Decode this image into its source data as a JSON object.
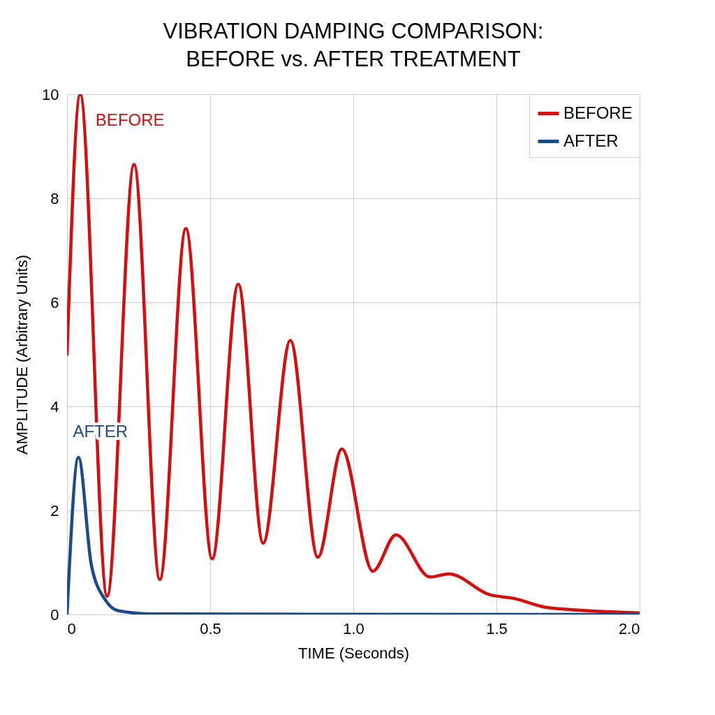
{
  "chart_data": {
    "type": "line",
    "title": "VIBRATION DAMPING COMPARISON:\nBEFORE vs. AFTER TREATMENT",
    "xlabel": "TIME (Seconds)",
    "ylabel": "AMPLITUDE (Arbitrary Units)",
    "xlim": [
      0,
      2
    ],
    "xticks": [
      0,
      0.5,
      {
        "value": 1,
        "label": "1.0"
      },
      1.5,
      {
        "value": 2,
        "label": "2.0"
      }
    ],
    "ylim": [
      0,
      10
    ],
    "yticks": [
      0,
      2,
      4,
      6,
      8,
      10
    ],
    "grid": true,
    "legend": "top right",
    "marker": "none",
    "line_style": "solid",
    "series": [
      {
        "name": "BEFORE",
        "color": "#d40f0f",
        "x": [
          0,
          0.046,
          0.14,
          0.234,
          0.324,
          0.415,
          0.507,
          0.598,
          0.685,
          0.78,
          0.876,
          0.96,
          1.068,
          1.149,
          1.268,
          1.334,
          1.476,
          1.56,
          1.68,
          2.0
        ],
        "values": [
          5.0,
          10.0,
          0.35,
          8.65,
          0.67,
          7.42,
          1.07,
          6.35,
          1.37,
          5.27,
          1.1,
          3.18,
          0.83,
          1.53,
          0.72,
          0.78,
          0.38,
          0.31,
          0.13,
          0.03
        ]
      },
      {
        "name": "AFTER",
        "color": "#1a4a8a",
        "x": [
          0,
          0.04,
          0.085,
          0.135,
          0.18,
          0.3,
          2.0
        ],
        "values": [
          0,
          3.02,
          0.95,
          0.27,
          0.07,
          0.01,
          0
        ]
      }
    ]
  }
}
